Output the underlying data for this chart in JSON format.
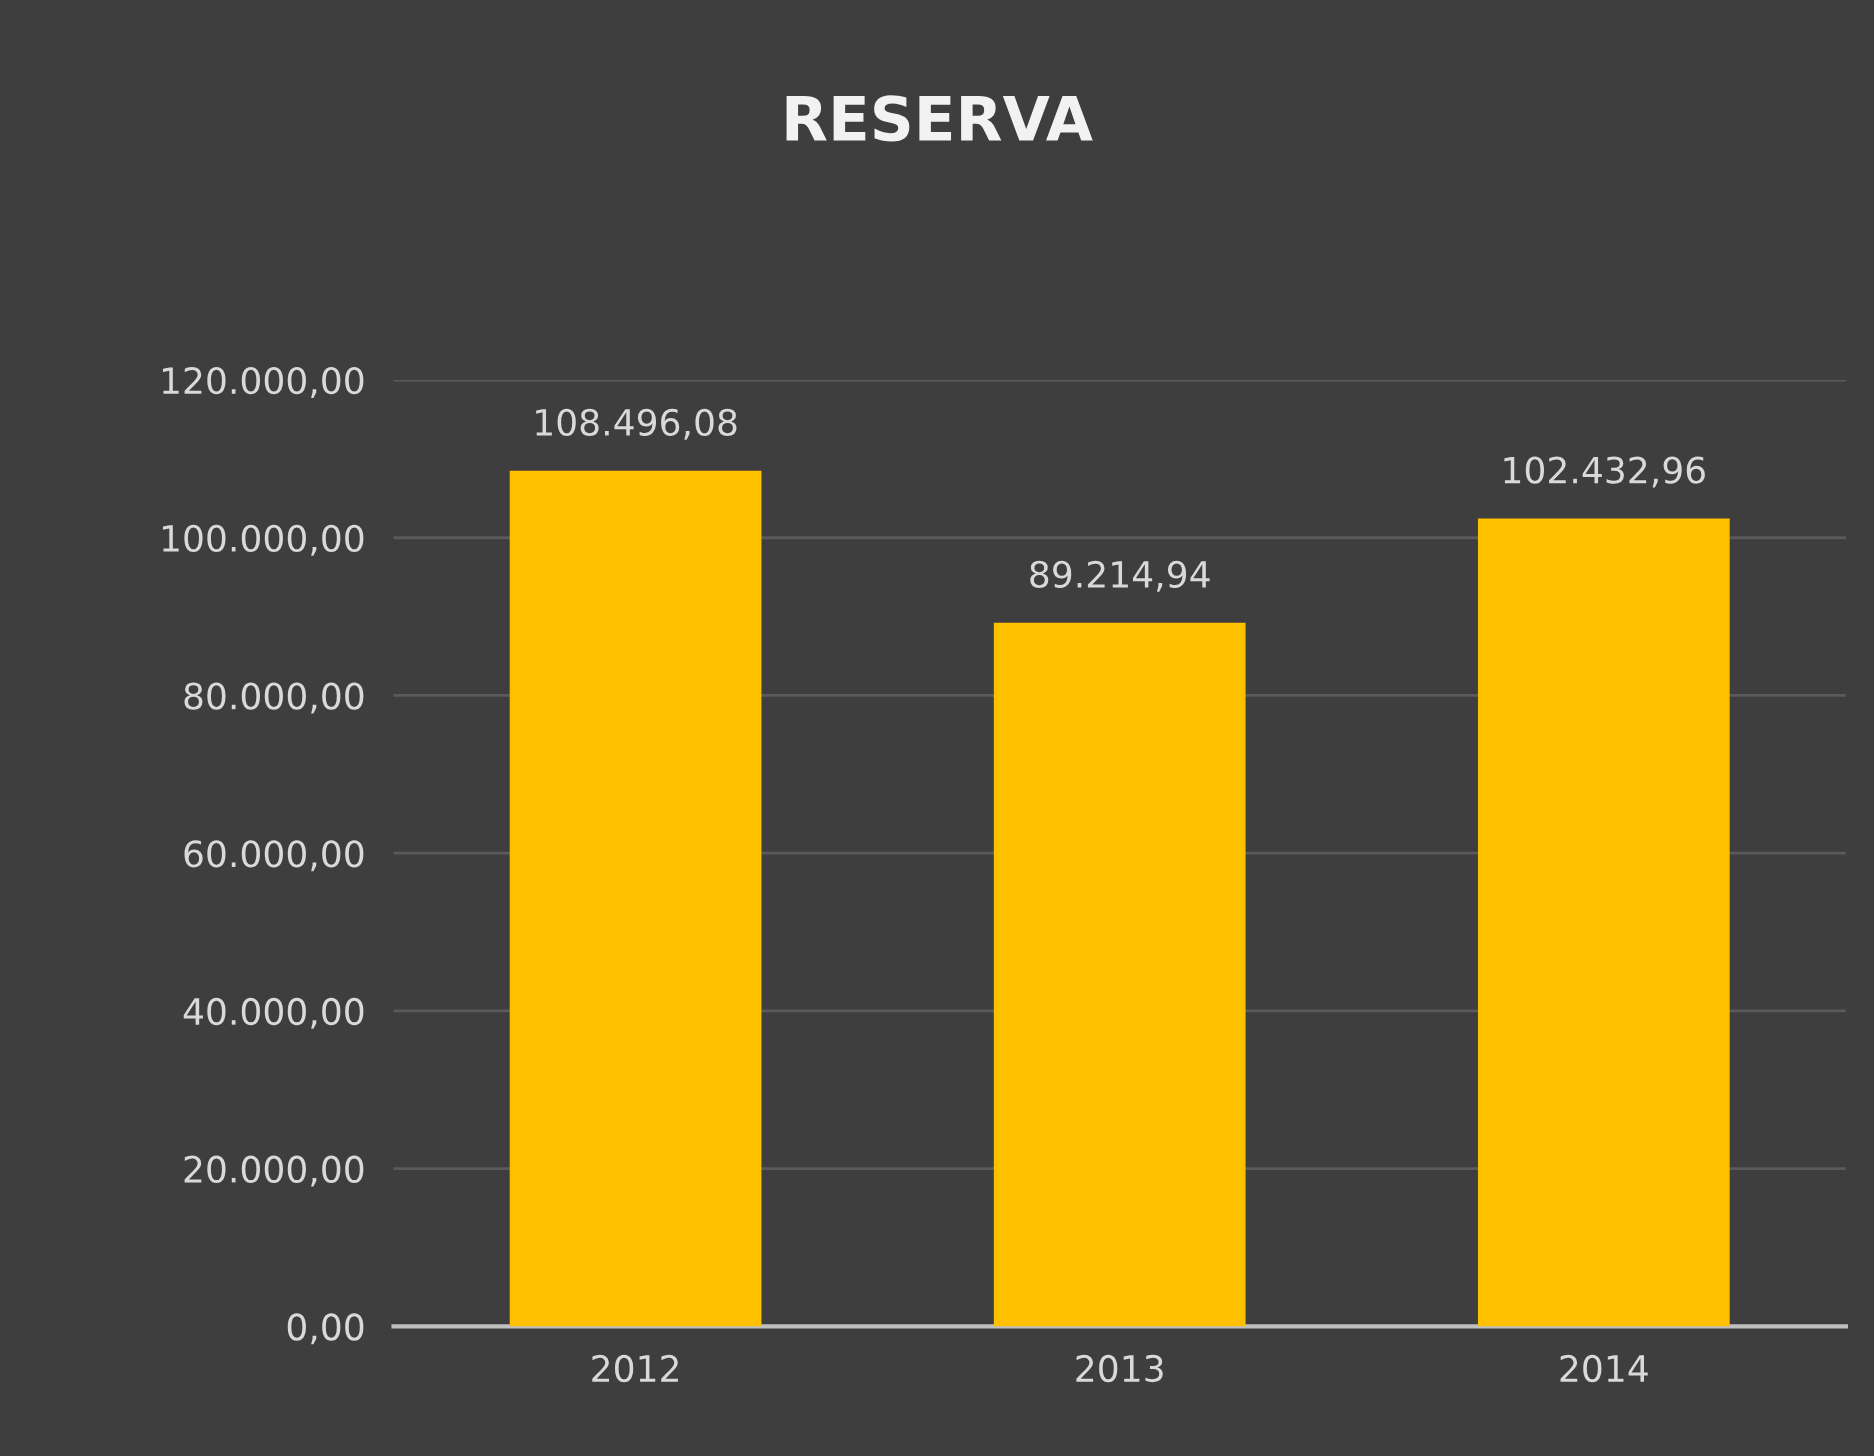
{
  "chart_data": {
    "type": "bar",
    "title": "RESERVA",
    "categories": [
      "2012",
      "2013",
      "2014"
    ],
    "values": [
      108496.08,
      89214.94,
      102432.96
    ],
    "value_labels": [
      "108.496,08",
      "89.214,94",
      "102.432,96"
    ],
    "color": "#ffc000",
    "ylim": [
      0,
      120000
    ],
    "yticks": [
      {
        "value": 0,
        "label": "0,00"
      },
      {
        "value": 20000,
        "label": "20.000,00"
      },
      {
        "value": 40000,
        "label": "40.000,00"
      },
      {
        "value": 60000,
        "label": "60.000,00"
      },
      {
        "value": 80000,
        "label": "80.000,00"
      },
      {
        "value": 100000,
        "label": "100.000,00"
      },
      {
        "value": 120000,
        "label": "120.000,00"
      }
    ],
    "grid": "y"
  }
}
